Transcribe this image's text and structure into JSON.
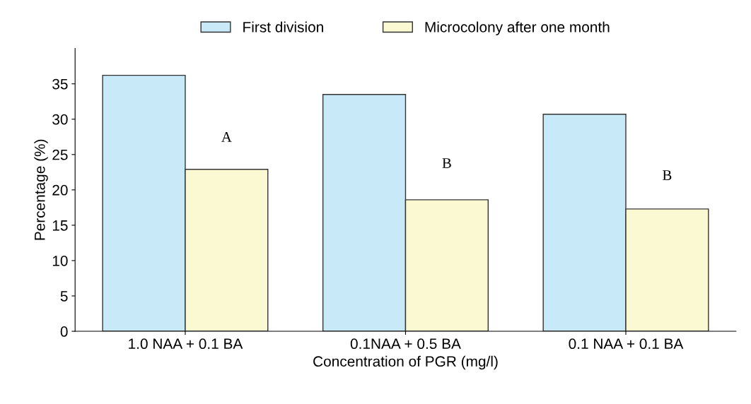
{
  "chart_data": {
    "type": "bar",
    "xlabel": "Concentration of PGR (mg/l)",
    "ylabel": "Percentage (%)",
    "categories": [
      "1.0 NAA + 0.1 BA",
      "0.1NAA + 0.5 BA",
      "0.1 NAA + 0.1 BA"
    ],
    "series": [
      {
        "name": "First division",
        "color": "#c8eaf8",
        "values": [
          36.2,
          33.5,
          30.7
        ]
      },
      {
        "name": "Microcolony after one month",
        "color": "#fbf9d2",
        "values": [
          22.9,
          18.6,
          17.3
        ]
      }
    ],
    "ylim": [
      0,
      40
    ],
    "yticks": [
      0,
      5,
      10,
      15,
      20,
      25,
      30,
      35
    ],
    "annotations": [
      {
        "text": "A",
        "x": "1.0 NAA + 0.1 BA",
        "y": 27.3
      },
      {
        "text": "B",
        "x": "0.1NAA + 0.5 BA",
        "y": 23.6
      },
      {
        "text": "B",
        "x": "0.1 NAA + 0.1 BA",
        "y": 21.9
      }
    ],
    "grid": false,
    "legend": "top"
  }
}
